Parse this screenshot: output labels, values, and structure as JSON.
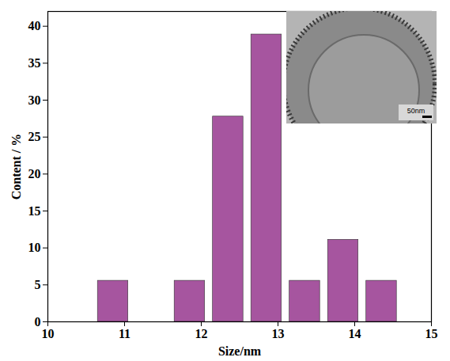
{
  "chart_data": {
    "type": "histogram",
    "bins": [
      10.6,
      11.1,
      11.6,
      12.1,
      12.6,
      13.1,
      13.6,
      14.1,
      14.6
    ],
    "values": [
      5.56,
      0,
      5.56,
      27.78,
      38.89,
      5.56,
      11.11,
      5.56
    ],
    "color": "#a6559f",
    "x_label": "Size/nm",
    "y_label": "Content / %",
    "xlim": [
      10,
      15
    ],
    "xticks": [
      10,
      11,
      12,
      13,
      14,
      15
    ],
    "ylim": [
      0,
      42
    ],
    "yticks": [
      0,
      5,
      10,
      15,
      20,
      25,
      30,
      35,
      40
    ],
    "grid": false,
    "annotations": [
      "50nm"
    ]
  }
}
